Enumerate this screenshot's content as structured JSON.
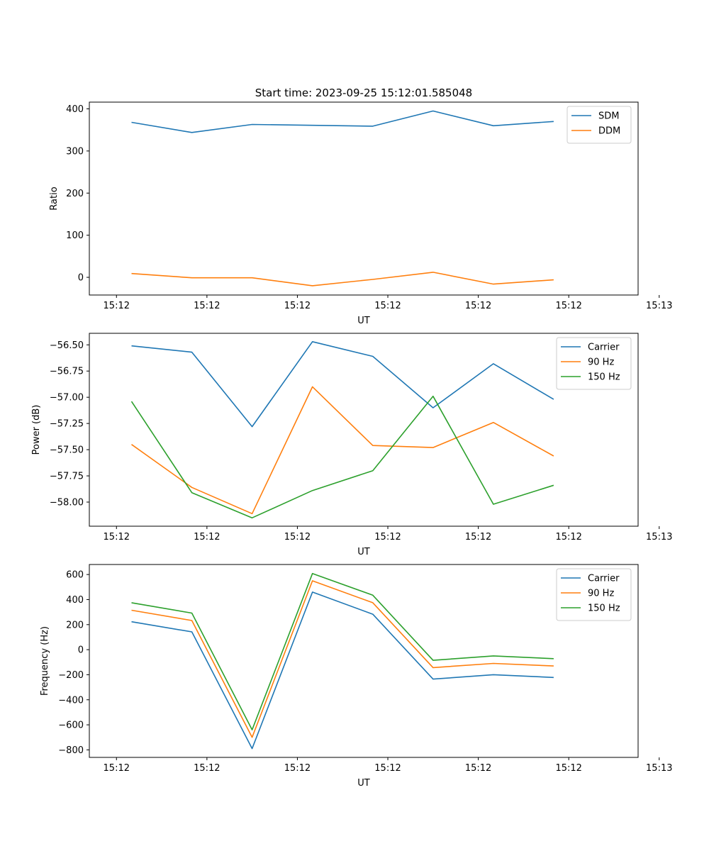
{
  "figure_title": "Start time: 2023-09-25 15:12:01.585048",
  "colors": {
    "c0": "#1f77b4",
    "c1": "#ff7f0e",
    "c2": "#2ca02c"
  },
  "chart_data": [
    {
      "type": "line",
      "title": "Start time: 2023-09-25 15:12:01.585048",
      "xlabel": "UT",
      "ylabel": "Ratio",
      "xlim": [
        -0.45,
        8.65
      ],
      "ylim": [
        -42,
        416
      ],
      "x": [
        0.25,
        1.25,
        2.25,
        3.25,
        4.25,
        5.25,
        6.25,
        7.25
      ],
      "xticks": [
        0,
        1.5,
        3,
        4.5,
        6,
        7.5,
        9
      ],
      "xticklabels": [
        "15:12",
        "15:12",
        "15:12",
        "15:12",
        "15:12",
        "15:12",
        "15:12"
      ],
      "xticks_extra": [
        {
          "pos": 9.0,
          "label": "15:13"
        }
      ],
      "yticks": [
        0,
        100,
        200,
        300,
        400
      ],
      "yticklabels": [
        "0",
        "100",
        "200",
        "300",
        "400"
      ],
      "legend_position": "top-right",
      "series": [
        {
          "name": "SDM",
          "color": "#1f77b4",
          "values": [
            368,
            344,
            363,
            361,
            359,
            395,
            360,
            370
          ]
        },
        {
          "name": "DDM",
          "color": "#ff7f0e",
          "values": [
            9,
            -1,
            -1,
            -20,
            -5,
            12,
            -16,
            -6
          ]
        }
      ]
    },
    {
      "type": "line",
      "title": "",
      "xlabel": "UT",
      "ylabel": "Power (dB)",
      "xlim": [
        -0.45,
        8.65
      ],
      "ylim": [
        -58.23,
        -56.39
      ],
      "x": [
        0.25,
        1.25,
        2.25,
        3.25,
        4.25,
        5.25,
        6.25,
        7.25
      ],
      "xticks": [
        0,
        1.5,
        3,
        4.5,
        6,
        7.5,
        9
      ],
      "xticklabels": [
        "15:12",
        "15:12",
        "15:12",
        "15:12",
        "15:12",
        "15:12",
        "15:12"
      ],
      "yticks": [
        -58.0,
        -57.75,
        -57.5,
        -57.25,
        -57.0,
        -56.75,
        -56.5
      ],
      "yticklabels": [
        "−58.00",
        "−57.75",
        "−57.50",
        "−57.25",
        "−57.00",
        "−56.75",
        "−56.50"
      ],
      "legend_position": "top-right",
      "series": [
        {
          "name": "Carrier",
          "color": "#1f77b4",
          "values": [
            -56.51,
            -56.57,
            -57.28,
            -56.47,
            -56.61,
            -57.1,
            -56.68,
            -57.02
          ]
        },
        {
          "name": "90 Hz",
          "color": "#ff7f0e",
          "values": [
            -57.45,
            -57.86,
            -58.11,
            -56.9,
            -57.46,
            -57.48,
            -57.24,
            -57.56
          ]
        },
        {
          "name": "150 Hz",
          "color": "#2ca02c",
          "values": [
            -57.04,
            -57.91,
            -58.15,
            -57.89,
            -57.7,
            -56.99,
            -58.02,
            -57.84
          ]
        }
      ]
    },
    {
      "type": "line",
      "title": "",
      "xlabel": "UT",
      "ylabel": "Frequency (Hz)",
      "xlim": [
        -0.45,
        8.65
      ],
      "ylim": [
        -860,
        680
      ],
      "x": [
        0.25,
        1.25,
        2.25,
        3.25,
        4.25,
        5.25,
        6.25,
        7.25
      ],
      "xticks": [
        0,
        1.5,
        3,
        4.5,
        6,
        7.5,
        9
      ],
      "xticklabels": [
        "15:12",
        "15:12",
        "15:12",
        "15:12",
        "15:12",
        "15:12",
        "15:12"
      ],
      "yticks": [
        -800,
        -600,
        -400,
        -200,
        0,
        200,
        400,
        600
      ],
      "yticklabels": [
        "−800",
        "−600",
        "−400",
        "−200",
        "0",
        "200",
        "400",
        "600"
      ],
      "legend_position": "top-right",
      "series": [
        {
          "name": "Carrier",
          "color": "#1f77b4",
          "values": [
            223,
            142,
            -790,
            460,
            283,
            -235,
            -200,
            -222
          ]
        },
        {
          "name": "90 Hz",
          "color": "#ff7f0e",
          "values": [
            315,
            233,
            -700,
            550,
            375,
            -143,
            -110,
            -130
          ]
        },
        {
          "name": "150 Hz",
          "color": "#2ca02c",
          "values": [
            375,
            292,
            -640,
            608,
            435,
            -85,
            -50,
            -72
          ]
        }
      ]
    }
  ]
}
